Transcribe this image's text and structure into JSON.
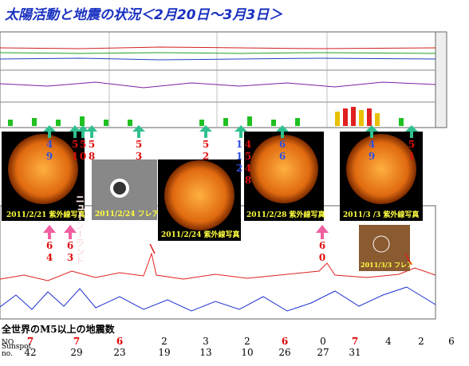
{
  "title": "太陽活動と地震の状況＜2月20日～3月3日＞",
  "photos": [
    {
      "caption": "2011/2/21 紫外線写真"
    },
    {
      "caption": "2011/2/24 フレア"
    },
    {
      "caption": "2011/2/24 紫外線写真"
    },
    {
      "caption": "2011/2/28 紫外線写真"
    },
    {
      "caption": "2011/3 /3 紫外線写真"
    },
    {
      "caption": "2011/3/3 フレア"
    }
  ],
  "region_label": "ニュージーランド",
  "annotations": [
    {
      "lines": [
        "4",
        "9"
      ]
    },
    {
      "lines": [
        "5",
        "1"
      ]
    },
    {
      "lines": [
        "5",
        "0"
      ]
    },
    {
      "lines": [
        "5",
        "8"
      ]
    },
    {
      "lines": [
        "5",
        "3"
      ]
    },
    {
      "lines": [
        "5",
        "2"
      ]
    },
    {
      "lines": [
        "1",
        "1",
        "2"
      ]
    },
    {
      "lines": [
        "4",
        "5",
        "4",
        "8"
      ]
    },
    {
      "lines": [
        "6",
        "6"
      ]
    },
    {
      "lines": [
        "4",
        "9"
      ]
    },
    {
      "lines": [
        "5",
        "1"
      ]
    },
    {
      "lines": [
        "6",
        "4"
      ]
    },
    {
      "lines": [
        "6",
        "3"
      ]
    },
    {
      "lines": [
        "6",
        "0"
      ]
    }
  ],
  "table": {
    "heading": "全世界のM5以上の地震数",
    "rows": [
      {
        "label": [
          "NO"
        ],
        "cells": [
          7,
          7,
          6,
          2,
          3,
          2,
          6,
          0,
          7,
          4,
          2,
          6
        ],
        "colors": [
          "#e00000",
          "#e00000",
          "#e00000",
          "#000000",
          "#000000",
          "#000000",
          "#e00000",
          "#000000",
          "#e00000",
          "#000000",
          "#000000",
          "#000000"
        ]
      },
      {
        "label": [
          "Sunspot",
          "no."
        ],
        "cells": [
          42,
          29,
          23,
          19,
          13,
          10,
          26,
          27,
          31
        ],
        "colors": [
          "#000000",
          "#000000",
          "#000000",
          "#000000",
          "#000000",
          "#000000",
          "#000000",
          "#000000",
          "#000000"
        ]
      }
    ]
  }
}
